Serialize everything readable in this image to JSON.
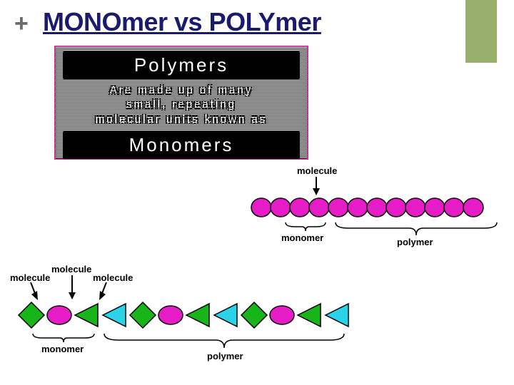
{
  "title": "MONOmer vs POLYmer",
  "plus_color": "#6a6a6a",
  "title_color": "#1a1a6e",
  "accent_color": "#98b06c",
  "defbox": {
    "border_color": "#cc3399",
    "big1": "Polymers",
    "line1": "Are made up of many",
    "line2": "small, repeating",
    "line3": "molecular units known as",
    "big2": "Monomers"
  },
  "diagram1": {
    "label_top": "molecule",
    "label_mid": "monomer",
    "label_bottom": "polymer",
    "circle_color": "#e61cc7",
    "circle_stroke": "#000000",
    "count": 12
  },
  "diagram2": {
    "label_m1": "molecule",
    "label_m2": "molecule",
    "label_m3": "molecule",
    "label_mono": "monomer",
    "label_poly": "polymer",
    "colors": {
      "diamond": "#17b51a",
      "ellipse": "#e61cc7",
      "triL": "#17b51a",
      "triR": "#2bd3e8"
    },
    "sequence": [
      "diamond",
      "ellipse",
      "triL",
      "triR",
      "diamond",
      "ellipse",
      "triL",
      "triR",
      "diamond",
      "ellipse",
      "triL",
      "triR"
    ]
  }
}
